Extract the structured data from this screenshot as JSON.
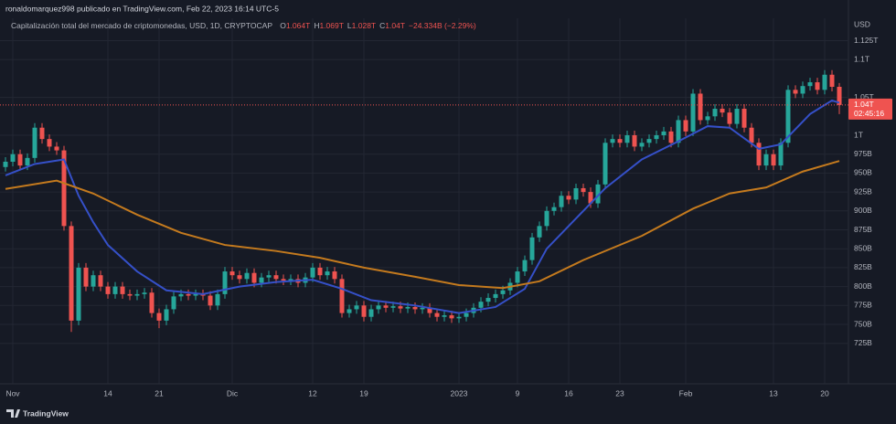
{
  "header": {
    "publisher": "ronaldomarquez998 publicado en TradingView.com, Feb 22, 2023 16:14 UTC-5",
    "footer": "TradingView"
  },
  "chart_data": {
    "type": "candlestick",
    "title": "Capitalización total del mercado de criptomonedas, USD, 1D, CRYPTOCAP",
    "ohlc_legend": [
      {
        "key": "O",
        "value": "1.064T"
      },
      {
        "key": "H",
        "value": "1.069T"
      },
      {
        "key": "L",
        "value": "1.028T"
      },
      {
        "key": "C",
        "value": "1.04T"
      }
    ],
    "change": "−24.334B (−2.29%)",
    "currency": "USD",
    "up_color": "#26a69a",
    "down_color": "#ef5350",
    "open": [
      958,
      965,
      975,
      960,
      970,
      1010,
      995,
      985,
      980,
      880,
      755,
      825,
      800,
      815,
      800,
      790,
      800,
      790,
      788,
      790,
      792,
      765,
      755,
      770,
      787,
      790,
      788,
      790,
      788,
      775,
      790,
      820,
      815,
      810,
      818,
      805,
      812,
      815,
      810,
      808,
      810,
      805,
      812,
      825,
      815,
      820,
      810,
      765,
      770,
      775,
      760,
      770,
      775,
      772,
      774,
      771,
      773,
      770,
      772,
      765,
      760,
      762,
      758,
      760,
      765,
      772,
      780,
      785,
      790,
      795,
      805,
      820,
      835,
      865,
      880,
      900,
      905,
      920,
      915,
      930,
      925,
      910,
      935,
      990,
      995,
      990,
      1000,
      985,
      990,
      995,
      1000,
      1005,
      990,
      1020,
      1005,
      1055,
      1020,
      1025,
      1035,
      1030,
      1015,
      1035,
      1010,
      990,
      960,
      975,
      960,
      990,
      1060,
      1055,
      1065,
      1070,
      1060,
      1080,
      1064
    ],
    "high": [
      971,
      981,
      981,
      976,
      1016,
      1016,
      1001,
      991,
      986,
      886,
      831,
      831,
      821,
      821,
      806,
      806,
      806,
      796,
      796,
      798,
      798,
      771,
      776,
      793,
      796,
      796,
      796,
      796,
      794,
      796,
      826,
      826,
      821,
      824,
      824,
      818,
      821,
      821,
      816,
      816,
      816,
      818,
      831,
      831,
      826,
      826,
      816,
      776,
      781,
      781,
      776,
      781,
      781,
      780,
      780,
      779,
      779,
      778,
      778,
      771,
      768,
      768,
      766,
      771,
      778,
      786,
      791,
      796,
      801,
      811,
      826,
      841,
      871,
      886,
      906,
      911,
      926,
      926,
      936,
      936,
      931,
      941,
      996,
      1001,
      1001,
      1006,
      1006,
      996,
      1001,
      1006,
      1011,
      1011,
      1026,
      1026,
      1061,
      1061,
      1031,
      1041,
      1041,
      1036,
      1041,
      1041,
      1016,
      996,
      981,
      981,
      996,
      1066,
      1066,
      1071,
      1076,
      1076,
      1086,
      1086,
      1069
    ],
    "low": [
      952,
      959,
      954,
      954,
      964,
      989,
      979,
      974,
      874,
      740,
      749,
      794,
      794,
      794,
      784,
      784,
      784,
      782,
      782,
      784,
      759,
      745,
      749,
      764,
      781,
      782,
      782,
      782,
      769,
      769,
      784,
      809,
      804,
      804,
      799,
      799,
      806,
      804,
      802,
      802,
      799,
      799,
      806,
      809,
      809,
      804,
      759,
      759,
      764,
      754,
      754,
      764,
      766,
      766,
      765,
      765,
      764,
      764,
      759,
      754,
      754,
      752,
      752,
      754,
      759,
      766,
      774,
      779,
      784,
      789,
      799,
      814,
      829,
      859,
      874,
      894,
      899,
      909,
      909,
      919,
      904,
      904,
      929,
      984,
      984,
      984,
      979,
      979,
      984,
      989,
      994,
      984,
      984,
      999,
      999,
      1014,
      1014,
      1019,
      1024,
      1009,
      1009,
      1004,
      984,
      954,
      954,
      954,
      954,
      984,
      1049,
      1049,
      1059,
      1054,
      1054,
      1058,
      1028
    ],
    "close": [
      965,
      975,
      960,
      970,
      1010,
      995,
      985,
      980,
      880,
      755,
      825,
      800,
      815,
      800,
      790,
      800,
      790,
      788,
      790,
      792,
      765,
      755,
      770,
      787,
      790,
      788,
      790,
      788,
      775,
      790,
      820,
      815,
      810,
      818,
      805,
      812,
      815,
      810,
      808,
      810,
      805,
      812,
      825,
      815,
      820,
      810,
      765,
      770,
      775,
      760,
      770,
      775,
      772,
      774,
      771,
      773,
      770,
      772,
      765,
      760,
      762,
      758,
      760,
      765,
      772,
      780,
      785,
      790,
      795,
      805,
      820,
      835,
      865,
      880,
      900,
      905,
      920,
      915,
      930,
      925,
      910,
      935,
      990,
      995,
      990,
      1000,
      985,
      990,
      995,
      1000,
      1005,
      990,
      1020,
      1005,
      1055,
      1020,
      1025,
      1035,
      1030,
      1015,
      1035,
      1010,
      990,
      960,
      975,
      960,
      990,
      1060,
      1055,
      1065,
      1070,
      1060,
      1080,
      1064,
      1040
    ],
    "ma_lines": [
      {
        "color": "#3550c8",
        "x": [
          0,
          4,
          8,
          10,
          12,
          14,
          18,
          22,
          27,
          32,
          37,
          42,
          46,
          50,
          56,
          62,
          67,
          71,
          74,
          78,
          82,
          87,
          92,
          96,
          99,
          103,
          106,
          110,
          113,
          114
        ],
        "values": [
          947,
          962,
          968,
          920,
          885,
          855,
          820,
          795,
          790,
          800,
          806,
          809,
          797,
          782,
          775,
          765,
          773,
          797,
          850,
          890,
          930,
          968,
          992,
          1012,
          1010,
          982,
          988,
          1028,
          1046,
          1043
        ]
      },
      {
        "color": "#c47a1e",
        "x": [
          0,
          7,
          12,
          18,
          24,
          30,
          37,
          43,
          49,
          56,
          62,
          68,
          73,
          79,
          87,
          94,
          99,
          104,
          109,
          114
        ],
        "values": [
          929,
          940,
          923,
          895,
          871,
          855,
          847,
          838,
          825,
          813,
          802,
          798,
          807,
          835,
          867,
          903,
          923,
          931,
          952,
          966
        ]
      }
    ],
    "last_price": {
      "value": 1040,
      "label": "1.04T"
    },
    "countdown": "02:45:16",
    "xlim": [
      -0.75,
      115.25
    ],
    "xticks": [
      {
        "value": 1,
        "label": "Nov"
      },
      {
        "value": 14,
        "label": "14"
      },
      {
        "value": 21,
        "label": "21"
      },
      {
        "value": 31,
        "label": "Dic"
      },
      {
        "value": 42,
        "label": "12"
      },
      {
        "value": 49,
        "label": "19"
      },
      {
        "value": 62,
        "label": "2023"
      },
      {
        "value": 70,
        "label": "9"
      },
      {
        "value": 77,
        "label": "16"
      },
      {
        "value": 84,
        "label": "23"
      },
      {
        "value": 93,
        "label": "Feb"
      },
      {
        "value": 105,
        "label": "13"
      },
      {
        "value": 112,
        "label": "20"
      }
    ],
    "ylim": [
      671.5,
      1154.6
    ],
    "yticks": [
      {
        "value": 1125,
        "label": "1.125T"
      },
      {
        "value": 1100,
        "label": "1.1T"
      },
      {
        "value": 1050,
        "label": "1.05T"
      },
      {
        "value": 1000,
        "label": "1T"
      },
      {
        "value": 975,
        "label": "975B"
      },
      {
        "value": 950,
        "label": "950B"
      },
      {
        "value": 925,
        "label": "925B"
      },
      {
        "value": 900,
        "label": "900B"
      },
      {
        "value": 875,
        "label": "875B"
      },
      {
        "value": 850,
        "label": "850B"
      },
      {
        "value": 825,
        "label": "825B"
      },
      {
        "value": 800,
        "label": "800B"
      },
      {
        "value": 775,
        "label": "775B"
      },
      {
        "value": 750,
        "label": "750B"
      },
      {
        "value": 725,
        "label": "725B"
      }
    ],
    "grid": true
  }
}
